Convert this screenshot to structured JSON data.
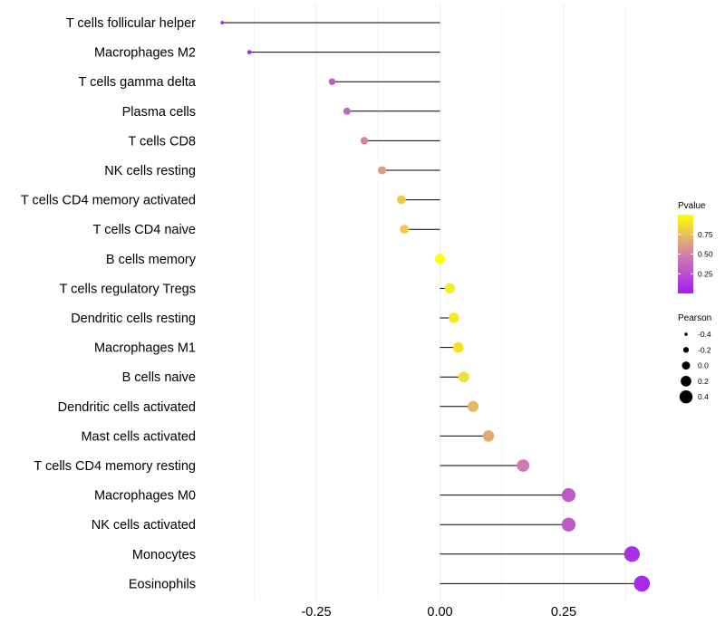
{
  "chart_data": {
    "type": "lollipop",
    "title": "",
    "xlabel": "",
    "ylabel": "",
    "xlim": [
      -0.43,
      0.44
    ],
    "x_ticks": [
      -0.25,
      0.0,
      0.25
    ],
    "x_tick_labels": [
      "-0.25",
      "0.00",
      "0.25"
    ],
    "grid": true,
    "categories": [
      "T cells follicular helper",
      "Macrophages M2",
      "T cells gamma delta",
      "Plasma cells",
      "T cells CD8",
      "NK cells resting",
      "T cells CD4 memory activated",
      "T cells CD4 naive",
      "B cells memory",
      "T cells regulatory  Tregs ",
      "Dendritic cells resting",
      "Macrophages M1",
      "B cells naive",
      "Dendritic cells activated",
      "Mast cells activated",
      "T cells CD4 memory resting",
      "Macrophages M0",
      "NK cells activated",
      "Monocytes",
      "Eosinophils"
    ],
    "pearson": [
      -0.44,
      -0.385,
      -0.218,
      -0.188,
      -0.153,
      -0.117,
      -0.078,
      -0.072,
      0.0,
      0.02,
      0.028,
      0.037,
      0.048,
      0.067,
      0.098,
      0.168,
      0.26,
      0.26,
      0.388,
      0.408
    ],
    "pvalue": [
      0.02,
      0.04,
      0.32,
      0.36,
      0.52,
      0.62,
      0.78,
      0.8,
      1.0,
      0.93,
      0.91,
      0.88,
      0.86,
      0.72,
      0.67,
      0.46,
      0.3,
      0.3,
      0.08,
      0.06
    ],
    "legend": {
      "color": {
        "title": "Pvalue",
        "ticks": [
          0.25,
          0.5,
          0.75
        ],
        "tick_labels": [
          "0.25",
          "0.50",
          "0.75"
        ],
        "range": [
          0.0,
          1.0
        ],
        "low_color": "#a020f0",
        "mid_color": "#d47fb0",
        "high_color": "#ffff00"
      },
      "size": {
        "title": "Pearson",
        "values": [
          -0.4,
          -0.2,
          0.0,
          0.2,
          0.4
        ],
        "labels": [
          "-0.4",
          "-0.2",
          "0.0",
          "0.2",
          "0.4"
        ]
      },
      "placement": "right"
    }
  }
}
